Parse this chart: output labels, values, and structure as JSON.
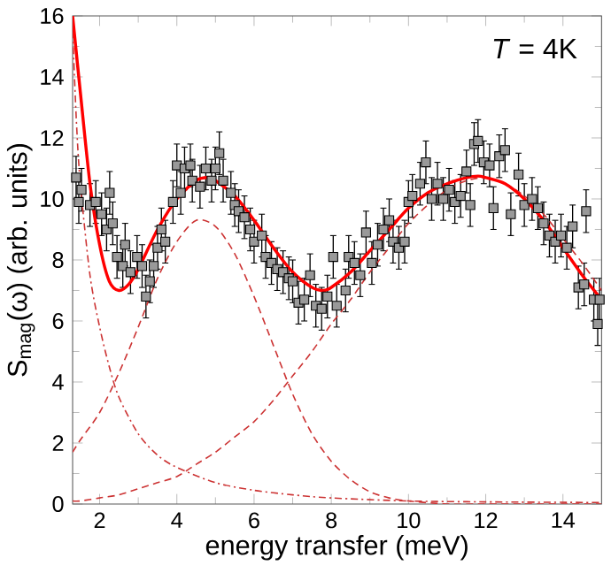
{
  "chart_data": {
    "type": "scatter",
    "xlabel": "energy transfer (meV)",
    "ylabel": "S$_{mag}$(ω) (arb. units)",
    "xlim": [
      1.3,
      15
    ],
    "ylim": [
      0,
      16
    ],
    "xticks": [
      2,
      4,
      6,
      8,
      10,
      12,
      14
    ],
    "yticks": [
      0,
      2,
      4,
      6,
      8,
      10,
      12,
      14,
      16
    ],
    "grid": false,
    "annotations": [
      "*T* = 4K"
    ],
    "series": [
      {
        "type": "scatter",
        "color": "#999999",
        "marker": "square",
        "x": [
          1.39,
          1.46,
          1.53,
          1.75,
          1.9,
          2.05,
          2.18,
          2.26,
          2.34,
          2.45,
          2.6,
          2.66,
          2.8,
          2.97,
          3.1,
          3.2,
          3.3,
          3.4,
          3.5,
          3.6,
          3.7,
          3.9,
          4.0,
          4.1,
          4.2,
          4.35,
          4.4,
          4.6,
          4.75,
          4.9,
          5.0,
          5.1,
          5.2,
          5.4,
          5.5,
          5.6,
          5.75,
          5.9,
          6.0,
          6.2,
          6.3,
          6.45,
          6.6,
          6.75,
          6.9,
          7.0,
          7.15,
          7.3,
          7.45,
          7.6,
          7.75,
          7.9,
          8.05,
          8.14,
          8.37,
          8.45,
          8.6,
          8.75,
          8.9,
          9.05,
          9.2,
          9.35,
          9.5,
          9.6,
          9.75,
          9.9,
          10.0,
          10.1,
          10.3,
          10.45,
          10.6,
          10.75,
          10.9,
          11.05,
          11.2,
          11.35,
          11.5,
          11.6,
          11.7,
          11.8,
          11.95,
          12.1,
          12.2,
          12.35,
          12.5,
          12.65,
          12.85,
          13.0,
          13.2,
          13.35,
          13.5,
          13.65,
          13.8,
          13.95,
          14.1,
          14.25,
          14.4,
          14.55,
          14.6,
          14.8,
          14.9,
          14.95
        ],
        "values": [
          10.7,
          9.9,
          10.3,
          9.8,
          9.9,
          9.5,
          9.0,
          10.2,
          9.2,
          8.1,
          7.8,
          8.5,
          7.6,
          8.1,
          7.8,
          6.8,
          7.3,
          7.8,
          8.4,
          9.0,
          8.6,
          9.9,
          11.1,
          10.2,
          11.0,
          11.1,
          10.6,
          10.4,
          11.0,
          10.6,
          11.0,
          11.5,
          10.6,
          10.2,
          9.8,
          9.6,
          9.4,
          9.0,
          8.6,
          8.8,
          8.1,
          7.9,
          7.7,
          7.6,
          7.4,
          7.3,
          6.6,
          6.7,
          7.5,
          6.5,
          6.4,
          6.8,
          8.1,
          6.5,
          7.0,
          8.1,
          7.9,
          7.5,
          8.9,
          7.9,
          8.5,
          9.0,
          9.3,
          8.6,
          8.4,
          8.6,
          9.9,
          10.1,
          10.5,
          11.2,
          10.0,
          10.5,
          10.0,
          10.3,
          9.9,
          10.1,
          10.9,
          9.8,
          11.8,
          11.9,
          11.2,
          11.1,
          9.7,
          11.4,
          11.6,
          9.5,
          10.8,
          9.8,
          10.0,
          9.7,
          9.2,
          8.8,
          8.6,
          8.8,
          8.4,
          9.1,
          7.1,
          7.2,
          9.6,
          6.7,
          5.9,
          6.7
        ],
        "errors": [
          0.7,
          0.7,
          0.7,
          0.7,
          0.7,
          0.7,
          0.7,
          0.7,
          0.7,
          0.7,
          0.7,
          0.7,
          0.7,
          0.7,
          0.7,
          0.7,
          0.7,
          0.7,
          0.7,
          0.7,
          0.7,
          0.7,
          0.7,
          0.7,
          0.7,
          0.7,
          0.7,
          0.7,
          0.7,
          0.7,
          0.7,
          0.7,
          0.7,
          0.7,
          0.7,
          0.7,
          0.7,
          0.7,
          0.7,
          0.7,
          0.7,
          0.7,
          0.7,
          0.7,
          0.7,
          0.7,
          0.7,
          0.7,
          0.7,
          0.7,
          0.7,
          0.7,
          0.7,
          0.7,
          0.7,
          0.7,
          0.7,
          0.7,
          0.7,
          0.7,
          0.7,
          0.7,
          0.7,
          0.7,
          0.7,
          0.7,
          0.7,
          0.7,
          0.7,
          0.7,
          0.7,
          0.7,
          0.7,
          0.7,
          0.7,
          0.7,
          0.7,
          0.7,
          0.7,
          0.7,
          0.7,
          0.7,
          0.7,
          0.7,
          0.7,
          0.7,
          0.7,
          0.7,
          0.7,
          0.7,
          0.7,
          0.7,
          0.7,
          0.7,
          0.7,
          0.7,
          0.7,
          0.7,
          0.7,
          0.7,
          0.7,
          0.7
        ]
      },
      {
        "type": "line",
        "color": "#cc3333",
        "line_style": "dashed",
        "x": [
          1.3,
          1.5,
          2,
          2.5,
          3,
          3.5,
          4,
          4.5,
          5,
          5.5,
          6,
          6.5,
          7,
          7.5,
          8,
          8.5,
          9,
          9.5,
          10,
          11,
          12,
          13,
          14,
          15
        ],
        "values": [
          1.7,
          2.1,
          3.0,
          4.3,
          5.8,
          7.4,
          8.6,
          9.3,
          9.1,
          8.2,
          6.8,
          5.2,
          3.6,
          2.3,
          1.4,
          0.8,
          0.4,
          0.2,
          0.1,
          0,
          0,
          0,
          0,
          0
        ]
      },
      {
        "type": "line",
        "color": "#cc3333",
        "line_style": "dashed",
        "x": [
          1.3,
          1.5,
          2,
          2.5,
          3,
          3.5,
          4,
          4.5,
          5,
          5.5,
          6,
          6.5,
          7,
          7.5,
          8,
          8.5,
          9,
          9.5,
          10,
          10.5,
          11,
          11.5,
          12,
          12.5,
          13,
          13.5,
          14,
          14.5,
          15
        ],
        "values": [
          0.1,
          0.1,
          0.2,
          0.3,
          0.5,
          0.7,
          0.9,
          1.3,
          1.7,
          2.2,
          2.7,
          3.4,
          4.2,
          5.0,
          5.9,
          6.7,
          7.6,
          8.4,
          9.2,
          9.8,
          10.3,
          10.6,
          10.7,
          10.5,
          10.1,
          9.5,
          8.7,
          7.9,
          7.0
        ]
      },
      {
        "type": "line",
        "color": "#cc3333",
        "line_style": "dashdot",
        "x": [
          1.3,
          1.4,
          1.5,
          1.75,
          2,
          2.25,
          2.5,
          3,
          3.5,
          4,
          5,
          6,
          7,
          8,
          10,
          12,
          15
        ],
        "values": [
          15.5,
          12.5,
          10.5,
          7.5,
          5.8,
          4.5,
          3.5,
          2.3,
          1.6,
          1.2,
          0.7,
          0.45,
          0.3,
          0.2,
          0.1,
          0.07,
          0.05
        ]
      },
      {
        "type": "line",
        "color": "#ff0000",
        "line_style": "solid",
        "x": [
          1.3,
          1.5,
          1.75,
          2,
          2.25,
          2.5,
          2.75,
          3,
          3.5,
          4,
          4.5,
          4.8,
          5,
          5.5,
          6,
          6.5,
          7,
          7.5,
          7.8,
          8,
          8.5,
          9,
          9.5,
          10,
          10.5,
          11,
          11.5,
          11.8,
          12,
          12.5,
          13,
          13.5,
          14,
          14.5,
          15
        ],
        "values": [
          16,
          13.5,
          10.5,
          8.5,
          7.3,
          7.0,
          7.2,
          7.7,
          9.0,
          10.0,
          10.6,
          10.7,
          10.6,
          10.1,
          9.3,
          8.4,
          7.6,
          7.1,
          7.0,
          7.1,
          7.6,
          8.3,
          9.0,
          9.7,
          10.2,
          10.5,
          10.7,
          10.75,
          10.7,
          10.5,
          10.0,
          9.3,
          8.4,
          7.5,
          6.7
        ]
      }
    ]
  }
}
